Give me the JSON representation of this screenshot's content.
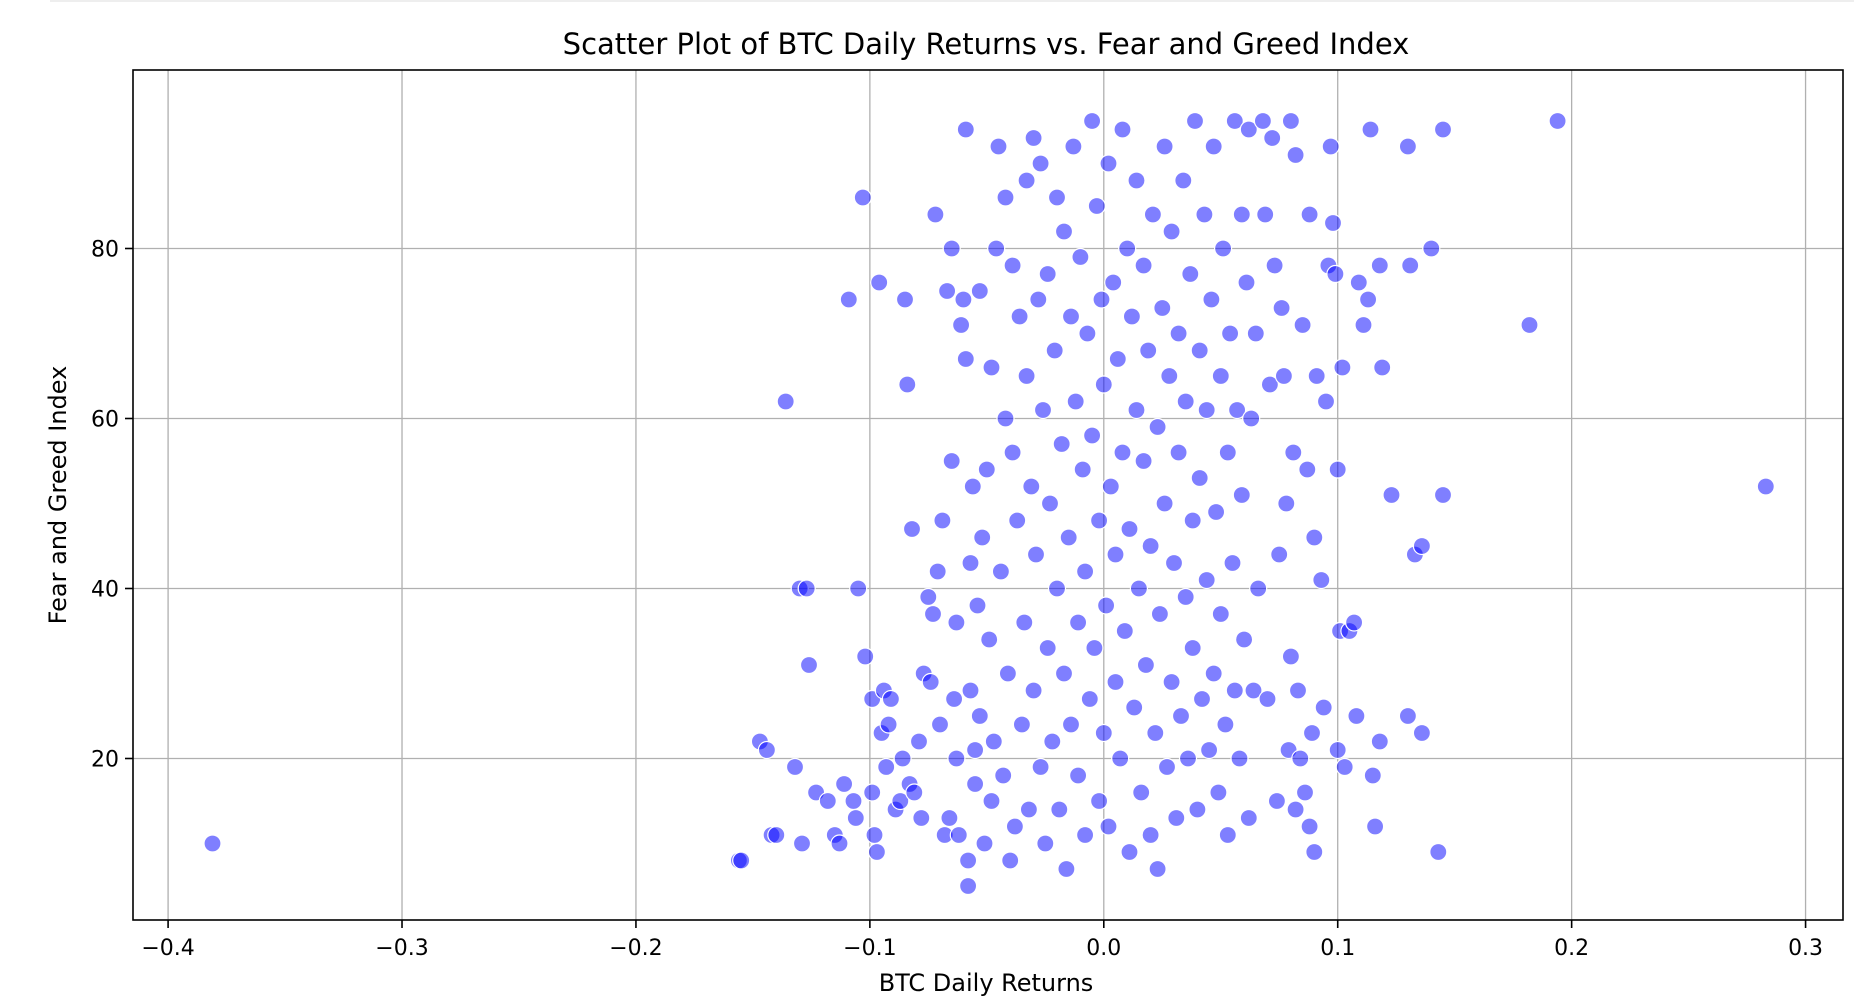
{
  "chart_data": {
    "type": "scatter",
    "title": "Scatter Plot of BTC Daily Returns vs. Fear and Greed Index",
    "xlabel": "BTC Daily Returns",
    "ylabel": "Fear and Greed Index",
    "xlim": [
      -0.415,
      0.316
    ],
    "ylim": [
      1,
      101
    ],
    "x_ticks": [
      -0.4,
      -0.3,
      -0.2,
      -0.1,
      0.0,
      0.1,
      0.2,
      0.3
    ],
    "x_tick_labels": [
      "−0.4",
      "−0.3",
      "−0.2",
      "−0.1",
      "0.0",
      "0.1",
      "0.2",
      "0.3"
    ],
    "y_ticks": [
      20,
      40,
      60,
      80
    ],
    "y_tick_labels": [
      "20",
      "40",
      "60",
      "80"
    ],
    "grid": true,
    "color": "#0000ff",
    "points": [
      [
        -0.381,
        10
      ],
      [
        -0.156,
        8
      ],
      [
        -0.155,
        8
      ],
      [
        -0.147,
        22
      ],
      [
        -0.144,
        21
      ],
      [
        -0.142,
        11
      ],
      [
        -0.14,
        11
      ],
      [
        -0.136,
        62
      ],
      [
        -0.132,
        19
      ],
      [
        -0.13,
        40
      ],
      [
        -0.127,
        40
      ],
      [
        -0.129,
        10
      ],
      [
        -0.126,
        31
      ],
      [
        -0.123,
        16
      ],
      [
        -0.118,
        15
      ],
      [
        -0.115,
        11
      ],
      [
        -0.113,
        10
      ],
      [
        -0.111,
        17
      ],
      [
        -0.109,
        74
      ],
      [
        -0.107,
        15
      ],
      [
        -0.106,
        13
      ],
      [
        -0.105,
        40
      ],
      [
        -0.103,
        86
      ],
      [
        -0.102,
        32
      ],
      [
        -0.099,
        27
      ],
      [
        -0.099,
        16
      ],
      [
        -0.098,
        11
      ],
      [
        -0.097,
        9
      ],
      [
        -0.096,
        76
      ],
      [
        -0.095,
        23
      ],
      [
        -0.094,
        28
      ],
      [
        -0.093,
        19
      ],
      [
        -0.092,
        24
      ],
      [
        -0.091,
        27
      ],
      [
        -0.089,
        14
      ],
      [
        -0.087,
        15
      ],
      [
        -0.086,
        20
      ],
      [
        -0.085,
        74
      ],
      [
        -0.084,
        64
      ],
      [
        -0.083,
        17
      ],
      [
        -0.082,
        47
      ],
      [
        -0.081,
        16
      ],
      [
        -0.079,
        22
      ],
      [
        -0.078,
        13
      ],
      [
        -0.077,
        30
      ],
      [
        -0.075,
        39
      ],
      [
        -0.074,
        29
      ],
      [
        -0.073,
        37
      ],
      [
        -0.072,
        84
      ],
      [
        -0.071,
        42
      ],
      [
        -0.07,
        24
      ],
      [
        -0.069,
        48
      ],
      [
        -0.068,
        11
      ],
      [
        -0.067,
        75
      ],
      [
        -0.066,
        13
      ],
      [
        -0.065,
        80
      ],
      [
        -0.065,
        55
      ],
      [
        -0.064,
        27
      ],
      [
        -0.063,
        20
      ],
      [
        -0.063,
        36
      ],
      [
        -0.062,
        11
      ],
      [
        -0.061,
        71
      ],
      [
        -0.06,
        74
      ],
      [
        -0.059,
        94
      ],
      [
        -0.059,
        67
      ],
      [
        -0.058,
        8
      ],
      [
        -0.058,
        5
      ],
      [
        -0.057,
        43
      ],
      [
        -0.057,
        28
      ],
      [
        -0.056,
        52
      ],
      [
        -0.055,
        17
      ],
      [
        -0.055,
        21
      ],
      [
        -0.054,
        38
      ],
      [
        -0.053,
        75
      ],
      [
        -0.053,
        25
      ],
      [
        -0.052,
        46
      ],
      [
        -0.051,
        10
      ],
      [
        -0.05,
        54
      ],
      [
        -0.049,
        34
      ],
      [
        -0.048,
        15
      ],
      [
        -0.048,
        66
      ],
      [
        -0.047,
        22
      ],
      [
        -0.046,
        80
      ],
      [
        -0.045,
        92
      ],
      [
        -0.044,
        42
      ],
      [
        -0.043,
        18
      ],
      [
        -0.042,
        86
      ],
      [
        -0.042,
        60
      ],
      [
        -0.041,
        30
      ],
      [
        -0.04,
        8
      ],
      [
        -0.039,
        56
      ],
      [
        -0.039,
        78
      ],
      [
        -0.038,
        12
      ],
      [
        -0.037,
        48
      ],
      [
        -0.036,
        72
      ],
      [
        -0.035,
        24
      ],
      [
        -0.034,
        36
      ],
      [
        -0.033,
        65
      ],
      [
        -0.033,
        88
      ],
      [
        -0.032,
        14
      ],
      [
        -0.031,
        52
      ],
      [
        -0.03,
        93
      ],
      [
        -0.03,
        28
      ],
      [
        -0.029,
        44
      ],
      [
        -0.028,
        74
      ],
      [
        -0.027,
        19
      ],
      [
        -0.027,
        90
      ],
      [
        -0.026,
        61
      ],
      [
        -0.025,
        10
      ],
      [
        -0.024,
        33
      ],
      [
        -0.024,
        77
      ],
      [
        -0.023,
        50
      ],
      [
        -0.022,
        22
      ],
      [
        -0.021,
        68
      ],
      [
        -0.02,
        86
      ],
      [
        -0.02,
        40
      ],
      [
        -0.019,
        14
      ],
      [
        -0.018,
        57
      ],
      [
        -0.017,
        82
      ],
      [
        -0.017,
        30
      ],
      [
        -0.016,
        7
      ],
      [
        -0.015,
        46
      ],
      [
        -0.014,
        72
      ],
      [
        -0.014,
        24
      ],
      [
        -0.013,
        92
      ],
      [
        -0.012,
        62
      ],
      [
        -0.011,
        36
      ],
      [
        -0.011,
        18
      ],
      [
        -0.01,
        79
      ],
      [
        -0.009,
        54
      ],
      [
        -0.008,
        11
      ],
      [
        -0.008,
        42
      ],
      [
        -0.007,
        70
      ],
      [
        -0.006,
        27
      ],
      [
        -0.005,
        95
      ],
      [
        -0.005,
        58
      ],
      [
        -0.004,
        33
      ],
      [
        -0.003,
        85
      ],
      [
        -0.002,
        15
      ],
      [
        -0.002,
        48
      ],
      [
        -0.001,
        74
      ],
      [
        0.0,
        23
      ],
      [
        0.0,
        64
      ],
      [
        0.001,
        38
      ],
      [
        0.002,
        90
      ],
      [
        0.002,
        12
      ],
      [
        0.003,
        52
      ],
      [
        0.004,
        76
      ],
      [
        0.005,
        29
      ],
      [
        0.005,
        44
      ],
      [
        0.006,
        67
      ],
      [
        0.007,
        20
      ],
      [
        0.008,
        94
      ],
      [
        0.008,
        56
      ],
      [
        0.009,
        35
      ],
      [
        0.01,
        80
      ],
      [
        0.011,
        9
      ],
      [
        0.011,
        47
      ],
      [
        0.012,
        72
      ],
      [
        0.013,
        26
      ],
      [
        0.014,
        61
      ],
      [
        0.014,
        88
      ],
      [
        0.015,
        40
      ],
      [
        0.016,
        16
      ],
      [
        0.017,
        55
      ],
      [
        0.017,
        78
      ],
      [
        0.018,
        31
      ],
      [
        0.019,
        68
      ],
      [
        0.02,
        11
      ],
      [
        0.02,
        45
      ],
      [
        0.021,
        84
      ],
      [
        0.022,
        23
      ],
      [
        0.023,
        59
      ],
      [
        0.023,
        7
      ],
      [
        0.024,
        37
      ],
      [
        0.025,
        73
      ],
      [
        0.026,
        92
      ],
      [
        0.026,
        50
      ],
      [
        0.027,
        19
      ],
      [
        0.028,
        65
      ],
      [
        0.029,
        29
      ],
      [
        0.029,
        82
      ],
      [
        0.03,
        43
      ],
      [
        0.031,
        13
      ],
      [
        0.032,
        70
      ],
      [
        0.032,
        56
      ],
      [
        0.033,
        25
      ],
      [
        0.034,
        88
      ],
      [
        0.035,
        39
      ],
      [
        0.035,
        62
      ],
      [
        0.036,
        20
      ],
      [
        0.037,
        77
      ],
      [
        0.038,
        48
      ],
      [
        0.038,
        33
      ],
      [
        0.039,
        95
      ],
      [
        0.04,
        14
      ],
      [
        0.041,
        68
      ],
      [
        0.041,
        53
      ],
      [
        0.042,
        27
      ],
      [
        0.043,
        84
      ],
      [
        0.044,
        41
      ],
      [
        0.044,
        61
      ],
      [
        0.045,
        21
      ],
      [
        0.046,
        74
      ],
      [
        0.047,
        30
      ],
      [
        0.047,
        92
      ],
      [
        0.048,
        49
      ],
      [
        0.049,
        16
      ],
      [
        0.05,
        65
      ],
      [
        0.05,
        37
      ],
      [
        0.051,
        80
      ],
      [
        0.052,
        24
      ],
      [
        0.053,
        56
      ],
      [
        0.053,
        11
      ],
      [
        0.054,
        70
      ],
      [
        0.055,
        43
      ],
      [
        0.056,
        95
      ],
      [
        0.056,
        28
      ],
      [
        0.057,
        61
      ],
      [
        0.058,
        20
      ],
      [
        0.059,
        84
      ],
      [
        0.059,
        51
      ],
      [
        0.06,
        34
      ],
      [
        0.061,
        76
      ],
      [
        0.062,
        13
      ],
      [
        0.062,
        94
      ],
      [
        0.063,
        60
      ],
      [
        0.064,
        28
      ],
      [
        0.065,
        70
      ],
      [
        0.066,
        40
      ],
      [
        0.068,
        95
      ],
      [
        0.069,
        84
      ],
      [
        0.07,
        27
      ],
      [
        0.071,
        64
      ],
      [
        0.072,
        93
      ],
      [
        0.073,
        78
      ],
      [
        0.074,
        15
      ],
      [
        0.075,
        44
      ],
      [
        0.076,
        73
      ],
      [
        0.077,
        65
      ],
      [
        0.078,
        50
      ],
      [
        0.079,
        21
      ],
      [
        0.08,
        32
      ],
      [
        0.08,
        95
      ],
      [
        0.081,
        56
      ],
      [
        0.082,
        14
      ],
      [
        0.082,
        91
      ],
      [
        0.083,
        28
      ],
      [
        0.084,
        20
      ],
      [
        0.085,
        71
      ],
      [
        0.086,
        16
      ],
      [
        0.087,
        54
      ],
      [
        0.088,
        12
      ],
      [
        0.088,
        84
      ],
      [
        0.089,
        23
      ],
      [
        0.09,
        9
      ],
      [
        0.09,
        46
      ],
      [
        0.091,
        65
      ],
      [
        0.093,
        41
      ],
      [
        0.094,
        26
      ],
      [
        0.095,
        62
      ],
      [
        0.096,
        78
      ],
      [
        0.097,
        92
      ],
      [
        0.098,
        83
      ],
      [
        0.099,
        77
      ],
      [
        0.1,
        21
      ],
      [
        0.1,
        54
      ],
      [
        0.101,
        35
      ],
      [
        0.102,
        66
      ],
      [
        0.103,
        19
      ],
      [
        0.105,
        35
      ],
      [
        0.107,
        36
      ],
      [
        0.108,
        25
      ],
      [
        0.109,
        76
      ],
      [
        0.111,
        71
      ],
      [
        0.113,
        74
      ],
      [
        0.114,
        94
      ],
      [
        0.115,
        18
      ],
      [
        0.116,
        12
      ],
      [
        0.118,
        22
      ],
      [
        0.118,
        78
      ],
      [
        0.119,
        66
      ],
      [
        0.123,
        51
      ],
      [
        0.13,
        92
      ],
      [
        0.13,
        25
      ],
      [
        0.131,
        78
      ],
      [
        0.133,
        44
      ],
      [
        0.136,
        23
      ],
      [
        0.136,
        45
      ],
      [
        0.14,
        80
      ],
      [
        0.143,
        9
      ],
      [
        0.145,
        51
      ],
      [
        0.145,
        94
      ],
      [
        0.182,
        71
      ],
      [
        0.194,
        95
      ],
      [
        0.283,
        52
      ]
    ]
  }
}
